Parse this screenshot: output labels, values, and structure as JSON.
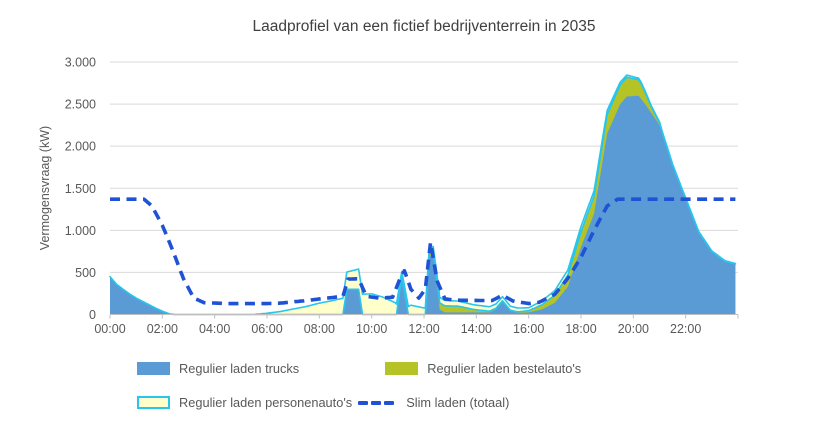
{
  "title": "Laadprofiel van een fictief bedrijventerrein in 2035",
  "y_axis": {
    "title": "Vermogensvraag (kW)",
    "tick_labels": [
      "3.000",
      "2.500",
      "2.000",
      "1.500",
      "1.000",
      "500",
      "0"
    ],
    "tick_values": [
      3000,
      2500,
      2000,
      1500,
      1000,
      500,
      0
    ],
    "max": 3000
  },
  "x_axis": {
    "tick_labels": [
      "00:00",
      "02:00",
      "04:00",
      "06:00",
      "08:00",
      "10:00",
      "12:00",
      "14:00",
      "16:00",
      "18:00",
      "20:00",
      "22:00"
    ],
    "tick_hours": [
      0,
      2,
      4,
      6,
      8,
      10,
      12,
      14,
      16,
      18,
      20,
      22
    ],
    "max_hour": 24
  },
  "colors": {
    "trucks": "#5B9BD5",
    "bestelautos": "#B5C327",
    "personenautos_fill": "#FFFFCC",
    "personenautos_border": "#29C5EC",
    "slim_laden": "#1F52D4",
    "gridline": "#D9D9D9",
    "axis_line": "#BFBFBF",
    "label_text": "#595959",
    "title_text": "#404040"
  },
  "chart_data": {
    "type": "area",
    "stacked": true,
    "unit": "kW",
    "title": "Laadprofiel van een fictief bedrijventerrein in 2035",
    "ylabel": "Vermogensvraag (kW)",
    "ylim": [
      0,
      3000
    ],
    "xlim_hours": [
      0,
      24
    ],
    "grid": "horizontal",
    "legend_position": "bottom",
    "series": [
      {
        "name": "Regulier laden trucks",
        "type": "area",
        "color": "#5B9BD5",
        "points": [
          [
            0,
            450
          ],
          [
            0.25,
            360
          ],
          [
            0.5,
            300
          ],
          [
            0.75,
            245
          ],
          [
            1,
            195
          ],
          [
            1.25,
            155
          ],
          [
            1.5,
            115
          ],
          [
            1.75,
            75
          ],
          [
            2,
            40
          ],
          [
            2.3,
            5
          ],
          [
            2.5,
            0
          ],
          [
            8.9,
            0
          ],
          [
            9.05,
            300
          ],
          [
            9.5,
            300
          ],
          [
            9.65,
            0
          ],
          [
            10.95,
            0
          ],
          [
            11.15,
            450
          ],
          [
            11.4,
            0
          ],
          [
            12.05,
            0
          ],
          [
            12.2,
            700
          ],
          [
            12.35,
            700
          ],
          [
            12.6,
            60
          ],
          [
            12.8,
            25
          ],
          [
            14.5,
            25
          ],
          [
            14.75,
            60
          ],
          [
            15,
            150
          ],
          [
            15.3,
            40
          ],
          [
            15.6,
            20
          ],
          [
            16,
            25
          ],
          [
            16.5,
            60
          ],
          [
            17,
            140
          ],
          [
            17.5,
            330
          ],
          [
            18,
            800
          ],
          [
            18.5,
            1200
          ],
          [
            19,
            2150
          ],
          [
            19.5,
            2500
          ],
          [
            19.75,
            2590
          ],
          [
            20.2,
            2600
          ],
          [
            20.5,
            2480
          ],
          [
            21,
            2250
          ],
          [
            21.5,
            1780
          ],
          [
            22,
            1380
          ],
          [
            22.5,
            980
          ],
          [
            23,
            750
          ],
          [
            23.5,
            635
          ],
          [
            23.9,
            600
          ]
        ]
      },
      {
        "name": "Regulier laden bestelauto's",
        "type": "area",
        "color": "#B5C327",
        "points": [
          [
            0,
            0
          ],
          [
            12.05,
            0
          ],
          [
            12.3,
            40
          ],
          [
            12.5,
            80
          ],
          [
            13.3,
            75
          ],
          [
            13.9,
            35
          ],
          [
            14.5,
            15
          ],
          [
            15.5,
            10
          ],
          [
            16,
            20
          ],
          [
            16.5,
            55
          ],
          [
            17,
            90
          ],
          [
            17.5,
            140
          ],
          [
            18,
            180
          ],
          [
            18.5,
            210
          ],
          [
            19,
            225
          ],
          [
            19.75,
            230
          ],
          [
            20.3,
            180
          ],
          [
            20.7,
            70
          ],
          [
            21.1,
            15
          ],
          [
            21.5,
            0
          ],
          [
            23.9,
            0
          ]
        ]
      },
      {
        "name": "Regulier laden personenauto's",
        "type": "area",
        "color": "#FFFFCC",
        "border": "#29C5EC",
        "points": [
          [
            0,
            0
          ],
          [
            5.5,
            0
          ],
          [
            6,
            15
          ],
          [
            6.5,
            35
          ],
          [
            7,
            65
          ],
          [
            7.5,
            95
          ],
          [
            8,
            135
          ],
          [
            8.5,
            165
          ],
          [
            9,
            200
          ],
          [
            9.5,
            240
          ],
          [
            10,
            245
          ],
          [
            10.4,
            210
          ],
          [
            10.9,
            140
          ],
          [
            11.15,
            60
          ],
          [
            11.5,
            110
          ],
          [
            12.05,
            75
          ],
          [
            12.2,
            55
          ],
          [
            12.6,
            65
          ],
          [
            13.3,
            60
          ],
          [
            14,
            55
          ],
          [
            15,
            50
          ],
          [
            15.6,
            45
          ],
          [
            16,
            35
          ],
          [
            16.5,
            45
          ],
          [
            17,
            55
          ],
          [
            17.5,
            60
          ],
          [
            18,
            65
          ],
          [
            18.5,
            60
          ],
          [
            19,
            50
          ],
          [
            19.75,
            25
          ],
          [
            20.5,
            15
          ],
          [
            21,
            10
          ],
          [
            21.5,
            6
          ],
          [
            23.9,
            5
          ]
        ]
      },
      {
        "name": "Slim laden (totaal)",
        "type": "line",
        "style": "dashed",
        "color": "#1F52D4",
        "points": [
          [
            0,
            1370
          ],
          [
            1.3,
            1370
          ],
          [
            1.6,
            1290
          ],
          [
            2,
            1060
          ],
          [
            2.4,
            760
          ],
          [
            2.8,
            430
          ],
          [
            3.2,
            195
          ],
          [
            3.6,
            140
          ],
          [
            4.5,
            130
          ],
          [
            6,
            130
          ],
          [
            6.5,
            135
          ],
          [
            7,
            150
          ],
          [
            7.5,
            165
          ],
          [
            8,
            185
          ],
          [
            8.6,
            205
          ],
          [
            8.9,
            215
          ],
          [
            9.1,
            420
          ],
          [
            9.5,
            425
          ],
          [
            9.8,
            215
          ],
          [
            10.3,
            195
          ],
          [
            10.8,
            205
          ],
          [
            11.05,
            400
          ],
          [
            11.25,
            520
          ],
          [
            11.5,
            300
          ],
          [
            11.8,
            195
          ],
          [
            12.05,
            300
          ],
          [
            12.25,
            855
          ],
          [
            12.5,
            400
          ],
          [
            12.8,
            185
          ],
          [
            13.2,
            170
          ],
          [
            14.6,
            165
          ],
          [
            15,
            230
          ],
          [
            15.4,
            160
          ],
          [
            16,
            130
          ],
          [
            16.4,
            145
          ],
          [
            17,
            240
          ],
          [
            17.5,
            430
          ],
          [
            18,
            680
          ],
          [
            18.5,
            1000
          ],
          [
            19,
            1290
          ],
          [
            19.4,
            1370
          ],
          [
            23.9,
            1370
          ]
        ]
      }
    ]
  }
}
